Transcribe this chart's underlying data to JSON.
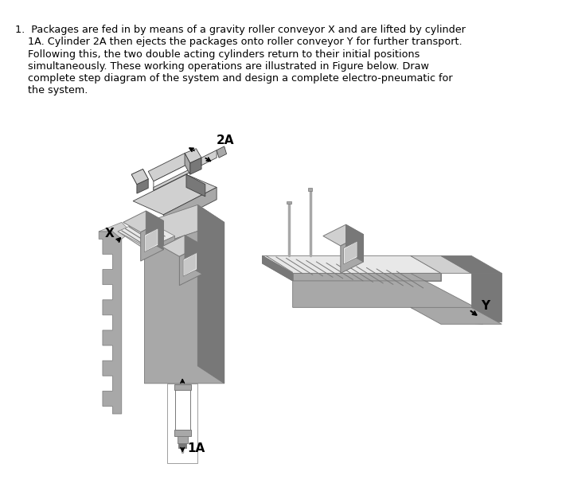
{
  "background_color": "#ffffff",
  "text_line1": "1.  Packages are fed in by means of a gravity roller conveyor X and are lifted by cylinder",
  "text_line2": "    1A. Cylinder 2A then ejects the packages onto roller conveyor Y for further transport.",
  "text_line3": "    Following this, the two double acting cylinders return to their initial positions",
  "text_line4": "    simultaneously. These working operations are illustrated in Figure below. Draw",
  "text_line5": "    complete step diagram of the system and design a complete electro-pneumatic for",
  "text_line6": "    the system.",
  "label_2A": "2A",
  "label_1A": "1A",
  "label_X": "X",
  "label_Y": "Y",
  "gray_light": "#d0d0d0",
  "gray_mid": "#a8a8a8",
  "gray_dark": "#787878",
  "gray_darker": "#585858",
  "gray_darkest": "#404040",
  "white": "#ffffff",
  "black": "#000000",
  "text_fontsize": 9.2,
  "label_fontsize": 10
}
